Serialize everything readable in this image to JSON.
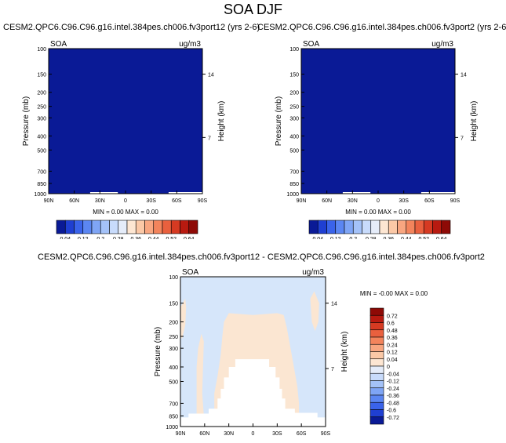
{
  "title": "SOA DJF",
  "chart_data": [
    {
      "type": "heatmap",
      "title": "CESM2.QPC6.C96.C96.g16.intel.384pes.ch006.fv3port12 (yrs 2-6)",
      "left_label": "SOA",
      "units": "ug/m3",
      "ylabel": "Pressure (mb)",
      "right_label": "Height (km)",
      "xticks": [
        "90N",
        "60N",
        "30N",
        "0",
        "30S",
        "60S",
        "90S"
      ],
      "yticks": [
        "100",
        "150",
        "200",
        "250",
        "300",
        "400",
        "500",
        "700",
        "850",
        "1000"
      ],
      "height_ticks": [
        "14",
        "7"
      ],
      "min_max": "MIN =   0.00  MAX =   0.00",
      "field_value": 0.0,
      "colorbar_labels": [
        "0.04",
        "0.12",
        "0.2",
        "0.28",
        "0.36",
        "0.44",
        "0.52",
        "0.64"
      ],
      "colorbar_colors": [
        "#0a1a96",
        "#1f3fd2",
        "#3a63ea",
        "#5b86f2",
        "#7fa5f5",
        "#a4c2f8",
        "#c8dbfb",
        "#e5ecf9",
        "#fde6d2",
        "#fbc8a6",
        "#f8a680",
        "#f3845c",
        "#e9603e",
        "#d63a22",
        "#b81a10",
        "#8e0a06"
      ]
    },
    {
      "type": "heatmap",
      "title": "CESM2.QPC6.C96.C96.g16.intel.384pes.ch006.fv3port2 (yrs 2-6)",
      "left_label": "SOA",
      "units": "ug/m3",
      "ylabel": "Pressure (mb)",
      "right_label": "Height (km)",
      "xticks": [
        "90N",
        "60N",
        "30N",
        "0",
        "30S",
        "60S",
        "90S"
      ],
      "yticks": [
        "100",
        "150",
        "200",
        "250",
        "300",
        "400",
        "500",
        "700",
        "850",
        "1000"
      ],
      "height_ticks": [
        "14",
        "7"
      ],
      "min_max": "MIN =   0.00  MAX =   0.00",
      "field_value": 0.0,
      "colorbar_labels": [
        "0.04",
        "0.12",
        "0.2",
        "0.28",
        "0.36",
        "0.44",
        "0.52",
        "0.64"
      ],
      "colorbar_colors": [
        "#0a1a96",
        "#1f3fd2",
        "#3a63ea",
        "#5b86f2",
        "#7fa5f5",
        "#a4c2f8",
        "#c8dbfb",
        "#e5ecf9",
        "#fde6d2",
        "#fbc8a6",
        "#f8a680",
        "#f3845c",
        "#e9603e",
        "#d63a22",
        "#b81a10",
        "#8e0a06"
      ]
    },
    {
      "type": "heatmap",
      "title": "CESM2.QPC6.C96.C96.g16.intel.384pes.ch006.fv3port12 - CESM2.QPC6.C96.C96.g16.intel.384pes.ch006.fv3port2",
      "left_label": "SOA",
      "units": "ug/m3",
      "ylabel": "Pressure (mb)",
      "right_label": "Height (km)",
      "xticks": [
        "90N",
        "60N",
        "30N",
        "0",
        "30S",
        "60S",
        "90S"
      ],
      "yticks": [
        "100",
        "150",
        "200",
        "250",
        "300",
        "400",
        "500",
        "700",
        "850",
        "1000"
      ],
      "height_ticks": [
        "14",
        "7"
      ],
      "min_max": "MIN =  -0.00  MAX =   0.00",
      "colorbar_labels": [
        "0.72",
        "0.6",
        "0.48",
        "0.36",
        "0.24",
        "0.12",
        "0.04",
        "0",
        "-0.04",
        "-0.12",
        "-0.24",
        "-0.36",
        "-0.48",
        "-0.6",
        "-0.72"
      ],
      "colorbar_colors": [
        "#8e0a06",
        "#b81a10",
        "#d63a22",
        "#e9603e",
        "#f3845c",
        "#f8a680",
        "#fbc8a6",
        "#fde6d2",
        "#e5ecf9",
        "#c8dbfb",
        "#a4c2f8",
        "#7fa5f5",
        "#5b86f2",
        "#3a63ea",
        "#1f3fd2",
        "#0a1a96"
      ],
      "field_colors": {
        "background": "#d6e6fa",
        "positive": "#fbe6d2",
        "missing": "#ffffff"
      }
    }
  ]
}
